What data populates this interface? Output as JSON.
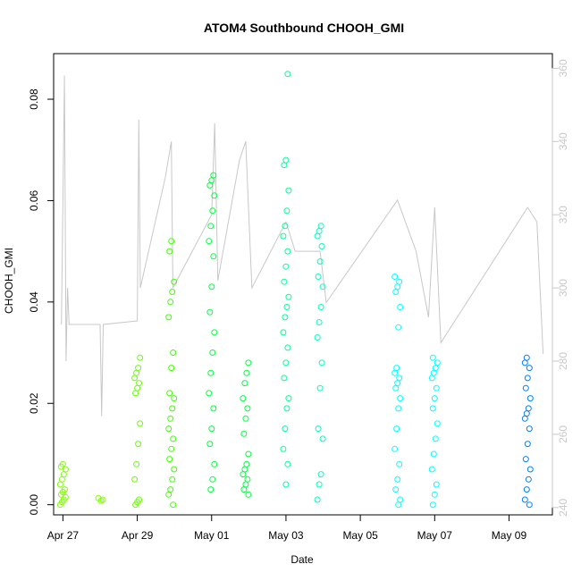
{
  "chart_data": {
    "type": "scatter",
    "title": "ATOM4 Southbound CHOOH_GMI",
    "xlabel": "Date",
    "ylabel": "CHOOH_GMI",
    "x_ticks": [
      "Apr 27",
      "Apr 29",
      "May 01",
      "May 03",
      "May 05",
      "May 07",
      "May 09"
    ],
    "y_ticks": [
      "0.00",
      "0.02",
      "0.04",
      "0.06",
      "0.08"
    ],
    "y2_ticks": [
      "240",
      "260",
      "280",
      "300",
      "320",
      "340",
      "360"
    ],
    "xlim": [
      "2016-04-26T18:00",
      "2016-05-10T04:00"
    ],
    "ylim": [
      -0.002,
      0.089
    ],
    "y2lim": [
      238,
      364
    ],
    "grid": false,
    "line_color": "#c8c8c8",
    "point_colors": [
      "#7fff00",
      "#00ff40",
      "#00ffbf",
      "#00ffff",
      "#0080ff"
    ],
    "clusters": [
      {
        "x": "2016-04-27T00:00",
        "color": "#7fff00",
        "values": [
          0.0,
          0.0005,
          0.001,
          0.0015,
          0.002,
          0.0025,
          0.003,
          0.004,
          0.005,
          0.006,
          0.007,
          0.0075,
          0.008
        ]
      },
      {
        "x": "2016-04-28T00:00",
        "color": "#7fff00",
        "values": [
          0.0008,
          0.001,
          0.0013
        ]
      },
      {
        "x": "2016-04-29T00:00",
        "color": "#66ff00",
        "values": [
          0.0,
          0.0005,
          0.001,
          0.005,
          0.008,
          0.012,
          0.016,
          0.022,
          0.023,
          0.024,
          0.025,
          0.026,
          0.027,
          0.029
        ]
      },
      {
        "x": "2016-04-29T22:00",
        "color": "#3fff00",
        "values": [
          0.0,
          0.002,
          0.003,
          0.005,
          0.007,
          0.009,
          0.011,
          0.013,
          0.015,
          0.017,
          0.019,
          0.021,
          0.022,
          0.027,
          0.03,
          0.037,
          0.04,
          0.042,
          0.044,
          0.05,
          0.052
        ]
      },
      {
        "x": "2016-05-01T00:00",
        "color": "#00ff40",
        "values": [
          0.003,
          0.005,
          0.008,
          0.012,
          0.015,
          0.019,
          0.022,
          0.026,
          0.03,
          0.034,
          0.038,
          0.043,
          0.049,
          0.052,
          0.055,
          0.058,
          0.061,
          0.063,
          0.064,
          0.065
        ]
      },
      {
        "x": "2016-05-01T22:00",
        "color": "#00ff40",
        "values": [
          0.002,
          0.003,
          0.004,
          0.005,
          0.006,
          0.007,
          0.008,
          0.01,
          0.014,
          0.017,
          0.019,
          0.021,
          0.024,
          0.026,
          0.028
        ]
      },
      {
        "x": "2016-05-03T00:00",
        "color": "#00ff99",
        "values": [
          0.004,
          0.008,
          0.011,
          0.015,
          0.019,
          0.021,
          0.025,
          0.028,
          0.031,
          0.034,
          0.037,
          0.039,
          0.041,
          0.044,
          0.047,
          0.05,
          0.053,
          0.055,
          0.058,
          0.062,
          0.067,
          0.068,
          0.085
        ]
      },
      {
        "x": "2016-05-03T22:00",
        "color": "#00ffbf",
        "values": [
          0.001,
          0.004,
          0.006,
          0.013,
          0.015,
          0.023,
          0.028,
          0.033,
          0.036,
          0.039,
          0.043,
          0.045,
          0.048,
          0.051,
          0.053,
          0.054,
          0.055
        ]
      },
      {
        "x": "2016-05-06T00:00",
        "color": "#00ffff",
        "values": [
          0.0,
          0.001,
          0.003,
          0.005,
          0.008,
          0.011,
          0.015,
          0.019,
          0.021,
          0.023,
          0.024,
          0.025,
          0.026,
          0.027,
          0.035,
          0.039,
          0.042,
          0.043,
          0.044,
          0.045
        ]
      },
      {
        "x": "2016-05-07T00:00",
        "color": "#00ffff",
        "values": [
          0.0,
          0.002,
          0.004,
          0.007,
          0.01,
          0.013,
          0.016,
          0.019,
          0.021,
          0.023,
          0.025,
          0.026,
          0.027,
          0.028,
          0.029
        ]
      },
      {
        "x": "2016-05-09T12:00",
        "color": "#0080ff",
        "values": [
          0.0,
          0.001,
          0.003,
          0.005,
          0.007,
          0.009,
          0.012,
          0.015,
          0.017,
          0.018,
          0.019,
          0.021,
          0.023,
          0.025,
          0.027,
          0.028,
          0.029
        ]
      }
    ],
    "secondary_line": [
      [
        "2016-04-26T23:00",
        290
      ],
      [
        "2016-04-27T01:00",
        358
      ],
      [
        "2016-04-27T02:00",
        280
      ],
      [
        "2016-04-27T03:00",
        300
      ],
      [
        "2016-04-27T04:00",
        290
      ],
      [
        "2016-04-28T00:00",
        290
      ],
      [
        "2016-04-28T01:00",
        265
      ],
      [
        "2016-04-28T02:00",
        290
      ],
      [
        "2016-04-29T00:00",
        291
      ],
      [
        "2016-04-29T01:00",
        346
      ],
      [
        "2016-04-29T02:00",
        300
      ],
      [
        "2016-04-29T18:00",
        330
      ],
      [
        "2016-04-29T22:00",
        340
      ],
      [
        "2016-04-29T23:00",
        300
      ],
      [
        "2016-05-01T00:00",
        320
      ],
      [
        "2016-05-01T02:00",
        345
      ],
      [
        "2016-05-01T04:00",
        302
      ],
      [
        "2016-05-01T18:00",
        335
      ],
      [
        "2016-05-01T22:00",
        340
      ],
      [
        "2016-05-02T02:00",
        300
      ],
      [
        "2016-05-03T00:00",
        318
      ],
      [
        "2016-05-03T06:00",
        310
      ],
      [
        "2016-05-03T22:00",
        310
      ],
      [
        "2016-05-04T02:00",
        296
      ],
      [
        "2016-05-06T00:00",
        324
      ],
      [
        "2016-05-06T12:00",
        310
      ],
      [
        "2016-05-06T20:00",
        292
      ],
      [
        "2016-05-07T00:00",
        322
      ],
      [
        "2016-05-07T04:00",
        285
      ],
      [
        "2016-05-09T12:00",
        322
      ],
      [
        "2016-05-09T18:00",
        318
      ],
      [
        "2016-05-09T22:00",
        282
      ]
    ]
  }
}
